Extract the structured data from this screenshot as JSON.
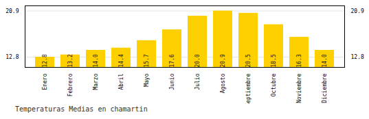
{
  "chart_data": {
    "type": "bar",
    "title": "Temperaturas Medias en chamartin",
    "categories": [
      "Enero",
      "Febrero",
      "Marzo",
      "Abril",
      "Mayo",
      "Junio",
      "Julio",
      "Agosto",
      "Septiembre",
      "Octubre",
      "Noviembre",
      "Diciembre"
    ],
    "values": [
      12.8,
      13.2,
      14.0,
      14.4,
      15.7,
      17.6,
      20.0,
      20.9,
      20.5,
      18.5,
      16.3,
      14.0
    ],
    "value_labels": [
      "12.8",
      "13.2",
      "14.0",
      "14.4",
      "15.7",
      "17.6",
      "20.0",
      "20.9",
      "20.5",
      "18.5",
      "16.3",
      "14.0"
    ],
    "color": "#FFD000",
    "ylim": [
      11.0,
      21.8
    ],
    "yticks": [
      12.8,
      20.9
    ],
    "grid": true,
    "data_labels": true
  }
}
